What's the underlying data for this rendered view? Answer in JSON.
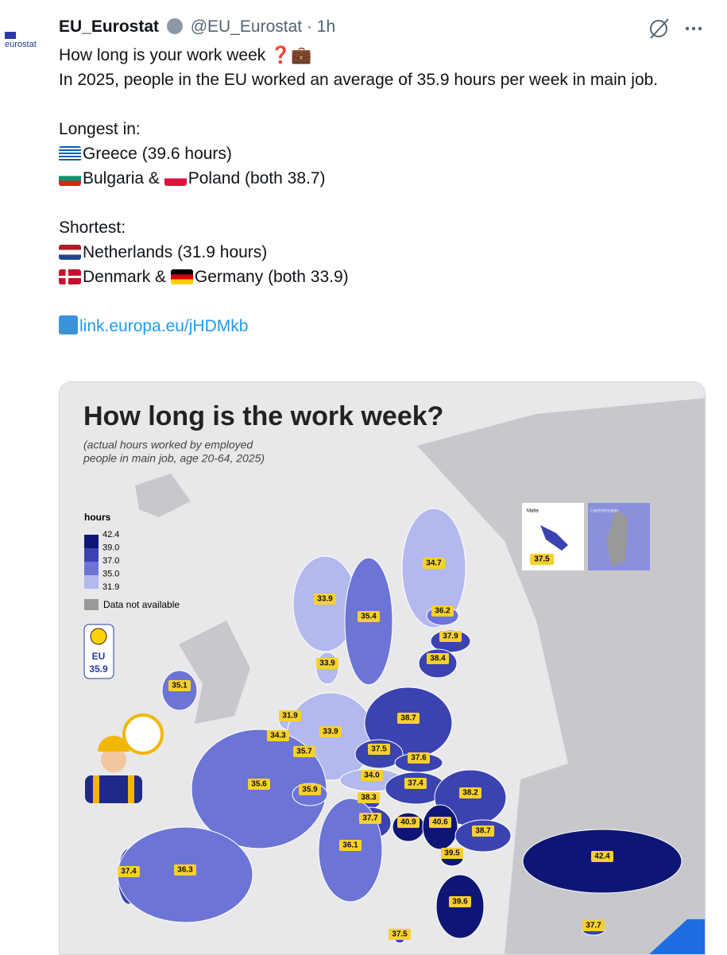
{
  "tweet": {
    "avatar_label": "eurostat",
    "name": "EU_Eurostat",
    "handle": "@EU_Eurostat",
    "separator": "·",
    "time": "1h",
    "headline": "How long is your work week ❓💼",
    "intro": "In 2025, people in the EU worked an average of 35.9 hours per week in main job.",
    "longest": {
      "heading": "Longest in:",
      "first": "Greece (39.6 hours)",
      "second": [
        "Bulgaria &",
        "Poland (both 38.7)"
      ]
    },
    "shortest": {
      "heading": "Shortest:",
      "first": "Netherlands (31.9 hours)",
      "second": [
        "Denmark &",
        "Germany (both 33.9)"
      ]
    },
    "link": "link.europa.eu/jHDMkb"
  },
  "map": {
    "title": "How long is the work week?",
    "subtitle": [
      "(actual hours worked by employed",
      "people in main job, age 20-64, 2025)"
    ],
    "legend": {
      "title": "hours",
      "ticks": [
        "42.4",
        "39.0",
        "37.0",
        "35.0",
        "31.9"
      ],
      "na": "Data not available"
    },
    "eu_badge": {
      "label": "EU",
      "value": "35.9"
    },
    "insets": {
      "malta": "Malta",
      "malta_value": "37.5",
      "liechtenstein": "Liechtenstein"
    },
    "values": [
      "34.7",
      "33.9",
      "35.4",
      "36.2",
      "37.9",
      "38.4",
      "33.9",
      "35.1",
      "31.9",
      "34.3",
      "33.9",
      "35.7",
      "38.7",
      "37.5",
      "37.6",
      "34.0",
      "37.4",
      "38.2",
      "35.6",
      "35.9",
      "38.3",
      "37.7",
      "40.9",
      "40.6",
      "38.7",
      "36.1",
      "39.5",
      "39.6",
      "42.4",
      "37.4",
      "36.3",
      "37.5",
      "37.7"
    ]
  }
}
